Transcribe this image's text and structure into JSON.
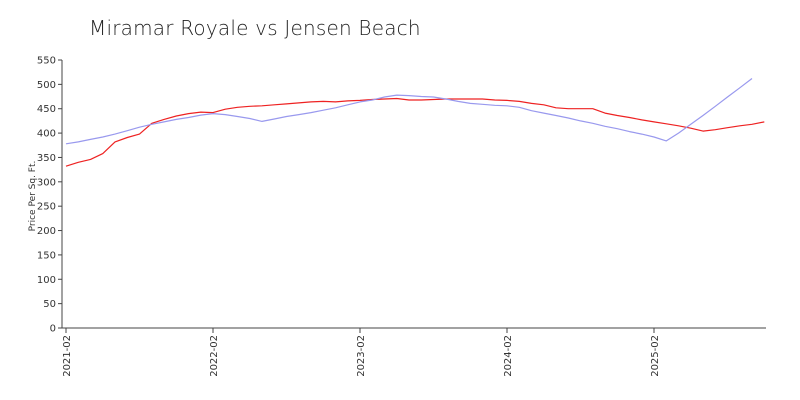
{
  "chart_data": {
    "type": "line",
    "title": "Miramar Royale vs  Jensen Beach",
    "ylabel": "Price Per Sq. Ft.",
    "xlabel": "",
    "ylim": [
      0,
      550
    ],
    "yticks": [
      0,
      50,
      100,
      150,
      200,
      250,
      300,
      350,
      400,
      450,
      500,
      550
    ],
    "xticks": [
      "2021-02",
      "2022-02",
      "2023-02",
      "2024-02",
      "2025-02"
    ],
    "x_range": [
      "2021-02",
      "2025-10"
    ],
    "grid": false,
    "legend": "none",
    "series": [
      {
        "color": "#ee2222",
        "points": [
          [
            "2021-02",
            332
          ],
          [
            "2021-03",
            340
          ],
          [
            "2021-04",
            346
          ],
          [
            "2021-05",
            358
          ],
          [
            "2021-06",
            382
          ],
          [
            "2021-07",
            391
          ],
          [
            "2021-08",
            398
          ],
          [
            "2021-09",
            420
          ],
          [
            "2021-10",
            428
          ],
          [
            "2021-11",
            435
          ],
          [
            "2021-12",
            440
          ],
          [
            "2022-01",
            443
          ],
          [
            "2022-02",
            442
          ],
          [
            "2022-03",
            449
          ],
          [
            "2022-04",
            453
          ],
          [
            "2022-05",
            455
          ],
          [
            "2022-06",
            456
          ],
          [
            "2022-07",
            458
          ],
          [
            "2022-08",
            460
          ],
          [
            "2022-09",
            462
          ],
          [
            "2022-10",
            464
          ],
          [
            "2022-11",
            465
          ],
          [
            "2022-12",
            464
          ],
          [
            "2023-01",
            466
          ],
          [
            "2023-02",
            467
          ],
          [
            "2023-03",
            469
          ],
          [
            "2023-04",
            470
          ],
          [
            "2023-05",
            471
          ],
          [
            "2023-06",
            468
          ],
          [
            "2023-07",
            468
          ],
          [
            "2023-08",
            469
          ],
          [
            "2023-09",
            470
          ],
          [
            "2023-10",
            470
          ],
          [
            "2023-11",
            470
          ],
          [
            "2023-12",
            470
          ],
          [
            "2024-01",
            468
          ],
          [
            "2024-02",
            467
          ],
          [
            "2024-03",
            465
          ],
          [
            "2024-04",
            461
          ],
          [
            "2024-05",
            458
          ],
          [
            "2024-06",
            452
          ],
          [
            "2024-07",
            450
          ],
          [
            "2024-08",
            450
          ],
          [
            "2024-09",
            450
          ],
          [
            "2024-10",
            441
          ],
          [
            "2024-11",
            436
          ],
          [
            "2024-12",
            432
          ],
          [
            "2025-01",
            427
          ],
          [
            "2025-02",
            423
          ],
          [
            "2025-03",
            419
          ],
          [
            "2025-04",
            415
          ],
          [
            "2025-05",
            410
          ],
          [
            "2025-06",
            404
          ],
          [
            "2025-07",
            407
          ],
          [
            "2025-08",
            411
          ],
          [
            "2025-09",
            415
          ],
          [
            "2025-10",
            418
          ],
          [
            "2025-11",
            423
          ]
        ]
      },
      {
        "color": "#9999ee",
        "points": [
          [
            "2021-02",
            378
          ],
          [
            "2021-03",
            382
          ],
          [
            "2021-04",
            387
          ],
          [
            "2021-05",
            392
          ],
          [
            "2021-06",
            398
          ],
          [
            "2021-07",
            405
          ],
          [
            "2021-08",
            412
          ],
          [
            "2021-09",
            418
          ],
          [
            "2021-10",
            423
          ],
          [
            "2021-11",
            428
          ],
          [
            "2021-12",
            432
          ],
          [
            "2022-01",
            437
          ],
          [
            "2022-02",
            440
          ],
          [
            "2022-03",
            438
          ],
          [
            "2022-04",
            434
          ],
          [
            "2022-05",
            430
          ],
          [
            "2022-06",
            424
          ],
          [
            "2022-07",
            429
          ],
          [
            "2022-08",
            434
          ],
          [
            "2022-09",
            438
          ],
          [
            "2022-10",
            442
          ],
          [
            "2022-11",
            447
          ],
          [
            "2022-12",
            452
          ],
          [
            "2023-01",
            458
          ],
          [
            "2023-02",
            464
          ],
          [
            "2023-03",
            468
          ],
          [
            "2023-04",
            474
          ],
          [
            "2023-05",
            478
          ],
          [
            "2023-06",
            477
          ],
          [
            "2023-07",
            475
          ],
          [
            "2023-08",
            474
          ],
          [
            "2023-09",
            470
          ],
          [
            "2023-10",
            465
          ],
          [
            "2023-11",
            461
          ],
          [
            "2023-12",
            459
          ],
          [
            "2024-01",
            457
          ],
          [
            "2024-02",
            456
          ],
          [
            "2024-03",
            453
          ],
          [
            "2024-04",
            446
          ],
          [
            "2024-05",
            441
          ],
          [
            "2024-06",
            436
          ],
          [
            "2024-07",
            431
          ],
          [
            "2024-08",
            425
          ],
          [
            "2024-09",
            420
          ],
          [
            "2024-10",
            414
          ],
          [
            "2024-11",
            409
          ],
          [
            "2024-12",
            403
          ],
          [
            "2025-01",
            398
          ],
          [
            "2025-02",
            392
          ],
          [
            "2025-03",
            384
          ],
          [
            "2025-04",
            400
          ],
          [
            "2025-05",
            418
          ],
          [
            "2025-06",
            436
          ],
          [
            "2025-07",
            455
          ],
          [
            "2025-08",
            474
          ],
          [
            "2025-09",
            493
          ],
          [
            "2025-10",
            512
          ]
        ]
      }
    ]
  }
}
